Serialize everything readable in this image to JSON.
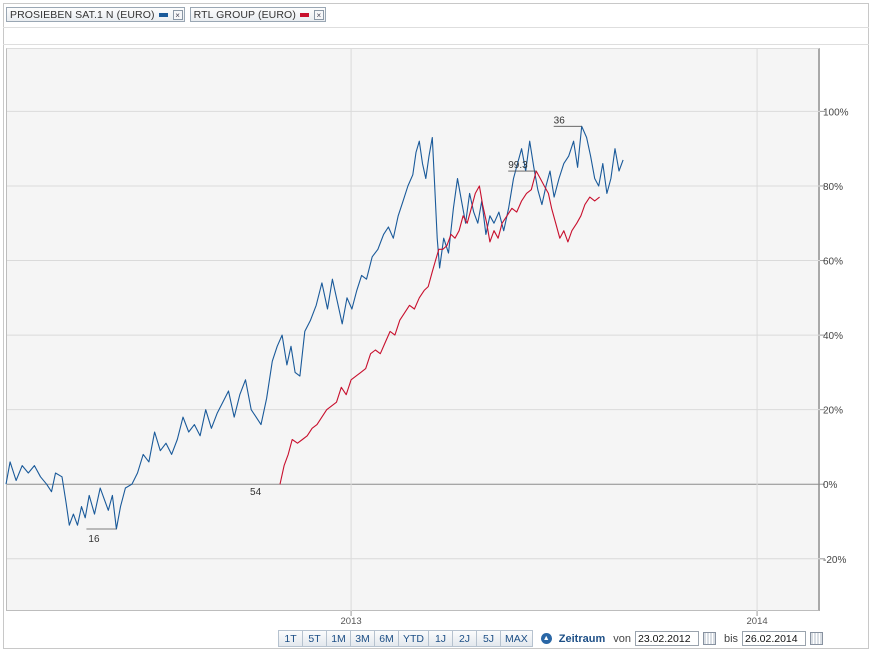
{
  "legend": {
    "items": [
      {
        "label": "PROSIEBEN SAT.1 N (EURO)",
        "color": "#1a5a9a"
      },
      {
        "label": "RTL GROUP (EURO)",
        "color": "#c8102e"
      }
    ],
    "close_glyph": "×"
  },
  "range_buttons": [
    "1T",
    "5T",
    "1M",
    "3M",
    "6M",
    "YTD",
    "1J",
    "2J",
    "5J",
    "MAX"
  ],
  "period": {
    "label": "Zeitraum",
    "toggle_glyph": "▲",
    "from_label": "von",
    "from_value": "23.02.2012",
    "to_label": "bis",
    "to_value": "26.02.2014"
  },
  "chart_data": {
    "type": "line",
    "title": "",
    "xlabel": "",
    "ylabel": "",
    "x_axis": {
      "start": 2012.15,
      "end": 2014.155,
      "ticks": [
        2013,
        2014
      ],
      "tick_labels": [
        "2013",
        "2014"
      ]
    },
    "y_axis": {
      "min": -34,
      "max": 117,
      "ticks": [
        -20,
        0,
        20,
        40,
        60,
        80,
        100
      ],
      "tick_labels": [
        "-20%",
        "0%",
        "20%",
        "40%",
        "60%",
        "80%",
        "100%"
      ],
      "position": "right"
    },
    "grid": true,
    "series": [
      {
        "name": "PROSIEBEN SAT.1 N (EURO)",
        "color": "#1a5a9a",
        "points": [
          [
            2012.15,
            0
          ],
          [
            2012.16,
            6
          ],
          [
            2012.175,
            1
          ],
          [
            2012.19,
            5
          ],
          [
            2012.205,
            3
          ],
          [
            2012.22,
            5
          ],
          [
            2012.235,
            2
          ],
          [
            2012.25,
            0
          ],
          [
            2012.262,
            -2
          ],
          [
            2012.272,
            3
          ],
          [
            2012.288,
            2
          ],
          [
            2012.298,
            -5
          ],
          [
            2012.306,
            -11
          ],
          [
            2012.316,
            -8
          ],
          [
            2012.326,
            -11
          ],
          [
            2012.336,
            -6
          ],
          [
            2012.345,
            -9
          ],
          [
            2012.355,
            -3
          ],
          [
            2012.368,
            -8
          ],
          [
            2012.382,
            -1
          ],
          [
            2012.392,
            -4
          ],
          [
            2012.402,
            -7
          ],
          [
            2012.412,
            -3
          ],
          [
            2012.422,
            -12
          ],
          [
            2012.432,
            -6
          ],
          [
            2012.444,
            -1
          ],
          [
            2012.46,
            0
          ],
          [
            2012.474,
            3
          ],
          [
            2012.488,
            8
          ],
          [
            2012.502,
            6
          ],
          [
            2012.516,
            14
          ],
          [
            2012.53,
            9
          ],
          [
            2012.544,
            11
          ],
          [
            2012.558,
            8
          ],
          [
            2012.572,
            12
          ],
          [
            2012.586,
            18
          ],
          [
            2012.6,
            14
          ],
          [
            2012.614,
            16
          ],
          [
            2012.628,
            13
          ],
          [
            2012.642,
            20
          ],
          [
            2012.656,
            15
          ],
          [
            2012.67,
            19
          ],
          [
            2012.684,
            22
          ],
          [
            2012.698,
            25
          ],
          [
            2012.712,
            18
          ],
          [
            2012.726,
            24
          ],
          [
            2012.74,
            28
          ],
          [
            2012.754,
            20
          ],
          [
            2012.766,
            18
          ],
          [
            2012.778,
            16
          ],
          [
            2012.792,
            23
          ],
          [
            2012.806,
            33
          ],
          [
            2012.818,
            37
          ],
          [
            2012.83,
            40
          ],
          [
            2012.842,
            32
          ],
          [
            2012.852,
            37
          ],
          [
            2012.862,
            30
          ],
          [
            2012.874,
            29
          ],
          [
            2012.886,
            41
          ],
          [
            2012.9,
            44
          ],
          [
            2012.914,
            48
          ],
          [
            2012.928,
            54
          ],
          [
            2012.942,
            47
          ],
          [
            2012.954,
            55
          ],
          [
            2012.966,
            49
          ],
          [
            2012.978,
            43
          ],
          [
            2012.99,
            50
          ],
          [
            2013.002,
            47
          ],
          [
            2013.014,
            52
          ],
          [
            2013.026,
            56
          ],
          [
            2013.038,
            55
          ],
          [
            2013.052,
            61
          ],
          [
            2013.066,
            63
          ],
          [
            2013.08,
            67
          ],
          [
            2013.092,
            69
          ],
          [
            2013.104,
            66
          ],
          [
            2013.116,
            72
          ],
          [
            2013.128,
            76
          ],
          [
            2013.14,
            80
          ],
          [
            2013.152,
            83
          ],
          [
            2013.16,
            89
          ],
          [
            2013.168,
            92
          ],
          [
            2013.176,
            86
          ],
          [
            2013.184,
            82
          ],
          [
            2013.192,
            88
          ],
          [
            2013.2,
            93
          ],
          [
            2013.206,
            80
          ],
          [
            2013.212,
            66
          ],
          [
            2013.218,
            58
          ],
          [
            2013.228,
            66
          ],
          [
            2013.24,
            62
          ],
          [
            2013.252,
            74
          ],
          [
            2013.262,
            82
          ],
          [
            2013.272,
            76
          ],
          [
            2013.282,
            70
          ],
          [
            2013.292,
            78
          ],
          [
            2013.302,
            73
          ],
          [
            2013.312,
            70
          ],
          [
            2013.322,
            76
          ],
          [
            2013.332,
            67
          ],
          [
            2013.342,
            72
          ],
          [
            2013.352,
            70
          ],
          [
            2013.364,
            73
          ],
          [
            2013.376,
            68
          ],
          [
            2013.388,
            74
          ],
          [
            2013.4,
            82
          ],
          [
            2013.41,
            86
          ],
          [
            2013.42,
            90
          ],
          [
            2013.43,
            84
          ],
          [
            2013.44,
            92
          ],
          [
            2013.45,
            85
          ],
          [
            2013.46,
            79
          ],
          [
            2013.47,
            75
          ],
          [
            2013.48,
            80
          ],
          [
            2013.49,
            84
          ],
          [
            2013.5,
            77
          ],
          [
            2013.512,
            82
          ],
          [
            2013.524,
            86
          ],
          [
            2013.536,
            88
          ],
          [
            2013.548,
            92
          ],
          [
            2013.558,
            85
          ],
          [
            2013.568,
            96
          ],
          [
            2013.58,
            93
          ],
          [
            2013.59,
            88
          ],
          [
            2013.6,
            82
          ],
          [
            2013.61,
            80
          ],
          [
            2013.62,
            86
          ],
          [
            2013.63,
            78
          ],
          [
            2013.64,
            82
          ],
          [
            2013.65,
            90
          ],
          [
            2013.66,
            84
          ],
          [
            2013.67,
            87
          ]
        ]
      },
      {
        "name": "RTL GROUP (EURO)",
        "color": "#c8102e",
        "points": [
          [
            2012.825,
            0
          ],
          [
            2012.835,
            5
          ],
          [
            2012.845,
            8
          ],
          [
            2012.855,
            12
          ],
          [
            2012.868,
            11
          ],
          [
            2012.88,
            12
          ],
          [
            2012.892,
            13
          ],
          [
            2012.904,
            15
          ],
          [
            2012.916,
            16
          ],
          [
            2012.928,
            18
          ],
          [
            2012.94,
            20
          ],
          [
            2012.952,
            21
          ],
          [
            2012.964,
            22
          ],
          [
            2012.976,
            26
          ],
          [
            2012.988,
            24
          ],
          [
            2013.0,
            28
          ],
          [
            2013.012,
            29
          ],
          [
            2013.024,
            30
          ],
          [
            2013.036,
            31
          ],
          [
            2013.048,
            35
          ],
          [
            2013.06,
            36
          ],
          [
            2013.072,
            35
          ],
          [
            2013.084,
            38
          ],
          [
            2013.096,
            41
          ],
          [
            2013.108,
            40
          ],
          [
            2013.12,
            44
          ],
          [
            2013.132,
            46
          ],
          [
            2013.144,
            48
          ],
          [
            2013.156,
            47
          ],
          [
            2013.168,
            50
          ],
          [
            2013.18,
            52
          ],
          [
            2013.19,
            53
          ],
          [
            2013.2,
            57
          ],
          [
            2013.208,
            60
          ],
          [
            2013.216,
            63
          ],
          [
            2013.226,
            63
          ],
          [
            2013.236,
            64
          ],
          [
            2013.246,
            67
          ],
          [
            2013.256,
            66
          ],
          [
            2013.266,
            68
          ],
          [
            2013.276,
            72
          ],
          [
            2013.286,
            70
          ],
          [
            2013.296,
            74
          ],
          [
            2013.306,
            78
          ],
          [
            2013.316,
            80
          ],
          [
            2013.324,
            75
          ],
          [
            2013.334,
            70
          ],
          [
            2013.342,
            65
          ],
          [
            2013.352,
            68
          ],
          [
            2013.362,
            66
          ],
          [
            2013.372,
            70
          ],
          [
            2013.384,
            72
          ],
          [
            2013.396,
            74
          ],
          [
            2013.408,
            73
          ],
          [
            2013.42,
            76
          ],
          [
            2013.432,
            78
          ],
          [
            2013.444,
            79
          ],
          [
            2013.456,
            84
          ],
          [
            2013.466,
            82
          ],
          [
            2013.476,
            80
          ],
          [
            2013.486,
            78
          ],
          [
            2013.494,
            74
          ],
          [
            2013.504,
            70
          ],
          [
            2013.514,
            66
          ],
          [
            2013.524,
            68
          ],
          [
            2013.534,
            65
          ],
          [
            2013.544,
            68
          ],
          [
            2013.556,
            70
          ],
          [
            2013.566,
            72
          ],
          [
            2013.576,
            75
          ],
          [
            2013.588,
            77
          ],
          [
            2013.6,
            76
          ],
          [
            2013.612,
            77
          ]
        ]
      }
    ],
    "annotations": [
      {
        "text": "16",
        "series": "PROSIEBEN SAT.1 N (EURO)",
        "kind": "low",
        "x": 2012.422,
        "y": -12
      },
      {
        "text": "54",
        "series": "RTL GROUP (EURO)",
        "kind": "start",
        "x": 2012.825,
        "y": 0
      },
      {
        "text": "36",
        "series": "PROSIEBEN SAT.1 N (EURO)",
        "kind": "high",
        "x": 2013.568,
        "y": 96
      },
      {
        "text": "99.3",
        "series": "RTL GROUP (EURO)",
        "kind": "high",
        "x": 2013.456,
        "y": 84
      }
    ]
  }
}
